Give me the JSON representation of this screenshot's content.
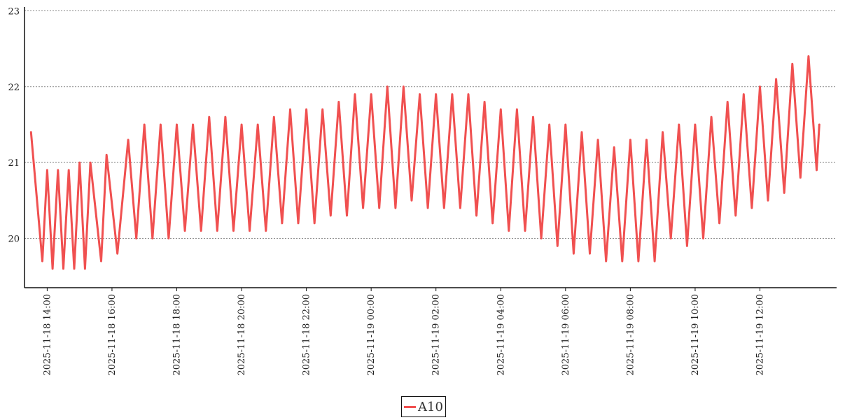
{
  "chart_data": {
    "type": "line",
    "title": "",
    "xlabel": "",
    "ylabel": "",
    "ylim": [
      19.35,
      23.05
    ],
    "yticks": [
      20,
      21,
      22,
      23
    ],
    "xlim": [
      "2025-11-18 13:18",
      "2025-11-19 14:22"
    ],
    "xticks": [
      "2025-11-18 14:00",
      "2025-11-18 16:00",
      "2025-11-18 18:00",
      "2025-11-18 20:00",
      "2025-11-18 22:00",
      "2025-11-19 00:00",
      "2025-11-19 02:00",
      "2025-11-19 04:00",
      "2025-11-19 06:00",
      "2025-11-19 08:00",
      "2025-11-19 10:00",
      "2025-11-19 12:00"
    ],
    "grid": "horizontal dotted",
    "legend": "bottom-center",
    "series": [
      {
        "name": "A10",
        "color": "#f05050",
        "points": [
          [
            "2025-11-18 13:30",
            21.4
          ],
          [
            "2025-11-18 13:51",
            19.7
          ],
          [
            "2025-11-18 14:00",
            20.9
          ],
          [
            "2025-11-18 14:10",
            19.6
          ],
          [
            "2025-11-18 14:20",
            20.9
          ],
          [
            "2025-11-18 14:30",
            19.6
          ],
          [
            "2025-11-18 14:40",
            20.9
          ],
          [
            "2025-11-18 14:50",
            19.6
          ],
          [
            "2025-11-18 15:00",
            21.0
          ],
          [
            "2025-11-18 15:10",
            19.6
          ],
          [
            "2025-11-18 15:20",
            21.0
          ],
          [
            "2025-11-18 15:40",
            19.7
          ],
          [
            "2025-11-18 15:50",
            21.1
          ],
          [
            "2025-11-18 16:10",
            19.8
          ],
          [
            "2025-11-18 16:30",
            21.3
          ],
          [
            "2025-11-18 16:45",
            20.0
          ],
          [
            "2025-11-18 17:00",
            21.5
          ],
          [
            "2025-11-18 17:15",
            20.0
          ],
          [
            "2025-11-18 17:30",
            21.5
          ],
          [
            "2025-11-18 17:45",
            20.0
          ],
          [
            "2025-11-18 18:00",
            21.5
          ],
          [
            "2025-11-18 18:15",
            20.1
          ],
          [
            "2025-11-18 18:30",
            21.5
          ],
          [
            "2025-11-18 18:45",
            20.1
          ],
          [
            "2025-11-18 19:00",
            21.6
          ],
          [
            "2025-11-18 19:15",
            20.1
          ],
          [
            "2025-11-18 19:30",
            21.6
          ],
          [
            "2025-11-18 19:45",
            20.1
          ],
          [
            "2025-11-18 20:00",
            21.5
          ],
          [
            "2025-11-18 20:15",
            20.1
          ],
          [
            "2025-11-18 20:30",
            21.5
          ],
          [
            "2025-11-18 20:45",
            20.1
          ],
          [
            "2025-11-18 21:00",
            21.6
          ],
          [
            "2025-11-18 21:15",
            20.2
          ],
          [
            "2025-11-18 21:30",
            21.7
          ],
          [
            "2025-11-18 21:45",
            20.2
          ],
          [
            "2025-11-18 22:00",
            21.7
          ],
          [
            "2025-11-18 22:15",
            20.2
          ],
          [
            "2025-11-18 22:30",
            21.7
          ],
          [
            "2025-11-18 22:45",
            20.3
          ],
          [
            "2025-11-18 23:00",
            21.8
          ],
          [
            "2025-11-18 23:15",
            20.3
          ],
          [
            "2025-11-18 23:30",
            21.9
          ],
          [
            "2025-11-18 23:45",
            20.4
          ],
          [
            "2025-11-19 00:00",
            21.9
          ],
          [
            "2025-11-19 00:15",
            20.4
          ],
          [
            "2025-11-19 00:30",
            22.0
          ],
          [
            "2025-11-19 00:45",
            20.4
          ],
          [
            "2025-11-19 01:00",
            22.0
          ],
          [
            "2025-11-19 01:15",
            20.5
          ],
          [
            "2025-11-19 01:30",
            21.9
          ],
          [
            "2025-11-19 01:45",
            20.4
          ],
          [
            "2025-11-19 02:00",
            21.9
          ],
          [
            "2025-11-19 02:15",
            20.4
          ],
          [
            "2025-11-19 02:30",
            21.9
          ],
          [
            "2025-11-19 02:45",
            20.4
          ],
          [
            "2025-11-19 03:00",
            21.9
          ],
          [
            "2025-11-19 03:15",
            20.3
          ],
          [
            "2025-11-19 03:30",
            21.8
          ],
          [
            "2025-11-19 03:45",
            20.2
          ],
          [
            "2025-11-19 04:00",
            21.7
          ],
          [
            "2025-11-19 04:15",
            20.1
          ],
          [
            "2025-11-19 04:30",
            21.7
          ],
          [
            "2025-11-19 04:45",
            20.1
          ],
          [
            "2025-11-19 05:00",
            21.6
          ],
          [
            "2025-11-19 05:15",
            20.0
          ],
          [
            "2025-11-19 05:30",
            21.5
          ],
          [
            "2025-11-19 05:45",
            19.9
          ],
          [
            "2025-11-19 06:00",
            21.5
          ],
          [
            "2025-11-19 06:15",
            19.8
          ],
          [
            "2025-11-19 06:30",
            21.4
          ],
          [
            "2025-11-19 06:45",
            19.8
          ],
          [
            "2025-11-19 07:00",
            21.3
          ],
          [
            "2025-11-19 07:15",
            19.7
          ],
          [
            "2025-11-19 07:30",
            21.2
          ],
          [
            "2025-11-19 07:45",
            19.7
          ],
          [
            "2025-11-19 08:00",
            21.3
          ],
          [
            "2025-11-19 08:15",
            19.7
          ],
          [
            "2025-11-19 08:30",
            21.3
          ],
          [
            "2025-11-19 08:45",
            19.7
          ],
          [
            "2025-11-19 09:00",
            21.4
          ],
          [
            "2025-11-19 09:15",
            20.0
          ],
          [
            "2025-11-19 09:30",
            21.5
          ],
          [
            "2025-11-19 09:45",
            19.9
          ],
          [
            "2025-11-19 10:00",
            21.5
          ],
          [
            "2025-11-19 10:15",
            20.0
          ],
          [
            "2025-11-19 10:30",
            21.6
          ],
          [
            "2025-11-19 10:45",
            20.2
          ],
          [
            "2025-11-19 11:00",
            21.8
          ],
          [
            "2025-11-19 11:15",
            20.3
          ],
          [
            "2025-11-19 11:30",
            21.9
          ],
          [
            "2025-11-19 11:45",
            20.4
          ],
          [
            "2025-11-19 12:00",
            22.0
          ],
          [
            "2025-11-19 12:15",
            20.5
          ],
          [
            "2025-11-19 12:30",
            22.1
          ],
          [
            "2025-11-19 12:45",
            20.6
          ],
          [
            "2025-11-19 13:00",
            22.3
          ],
          [
            "2025-11-19 13:15",
            20.8
          ],
          [
            "2025-11-19 13:30",
            22.4
          ],
          [
            "2025-11-19 13:45",
            20.9
          ],
          [
            "2025-11-19 13:50",
            21.5
          ]
        ]
      }
    ]
  }
}
